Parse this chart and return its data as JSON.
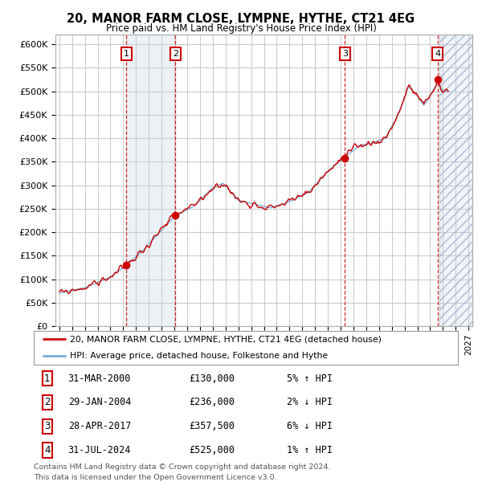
{
  "title": "20, MANOR FARM CLOSE, LYMPNE, HYTHE, CT21 4EG",
  "subtitle": "Price paid vs. HM Land Registry's House Price Index (HPI)",
  "ylim": [
    0,
    620000
  ],
  "yticks": [
    0,
    50000,
    100000,
    150000,
    200000,
    250000,
    300000,
    350000,
    400000,
    450000,
    500000,
    550000,
    600000
  ],
  "ytick_labels": [
    "£0",
    "£50K",
    "£100K",
    "£150K",
    "£200K",
    "£250K",
    "£300K",
    "£350K",
    "£400K",
    "£450K",
    "£500K",
    "£550K",
    "£600K"
  ],
  "xlim_start": 1994.7,
  "xlim_end": 2027.3,
  "background_color": "#ffffff",
  "grid_color": "#cccccc",
  "shade_start": 2000.25,
  "shade_end": 2004.08,
  "hatch_start": 2024.75,
  "hatch_color": "#dce6f1",
  "line_red_color": "#cc0000",
  "line_blue_color": "#7bafd4",
  "transactions": [
    {
      "num": 1,
      "year": 2000.25,
      "price": 130000,
      "date": "31-MAR-2000",
      "pct": "5%",
      "dir": "↑"
    },
    {
      "num": 2,
      "year": 2004.08,
      "price": 236000,
      "date": "29-JAN-2004",
      "pct": "2%",
      "dir": "↓"
    },
    {
      "num": 3,
      "year": 2017.33,
      "price": 357500,
      "date": "28-APR-2017",
      "pct": "6%",
      "dir": "↓"
    },
    {
      "num": 4,
      "year": 2024.58,
      "price": 525000,
      "date": "31-JUL-2024",
      "pct": "1%",
      "dir": "↑"
    }
  ],
  "legend_line1": "20, MANOR FARM CLOSE, LYMPNE, HYTHE, CT21 4EG (detached house)",
  "legend_line2": "HPI: Average price, detached house, Folkestone and Hythe",
  "footnote1": "Contains HM Land Registry data © Crown copyright and database right 2024.",
  "footnote2": "This data is licensed under the Open Government Licence v3.0."
}
